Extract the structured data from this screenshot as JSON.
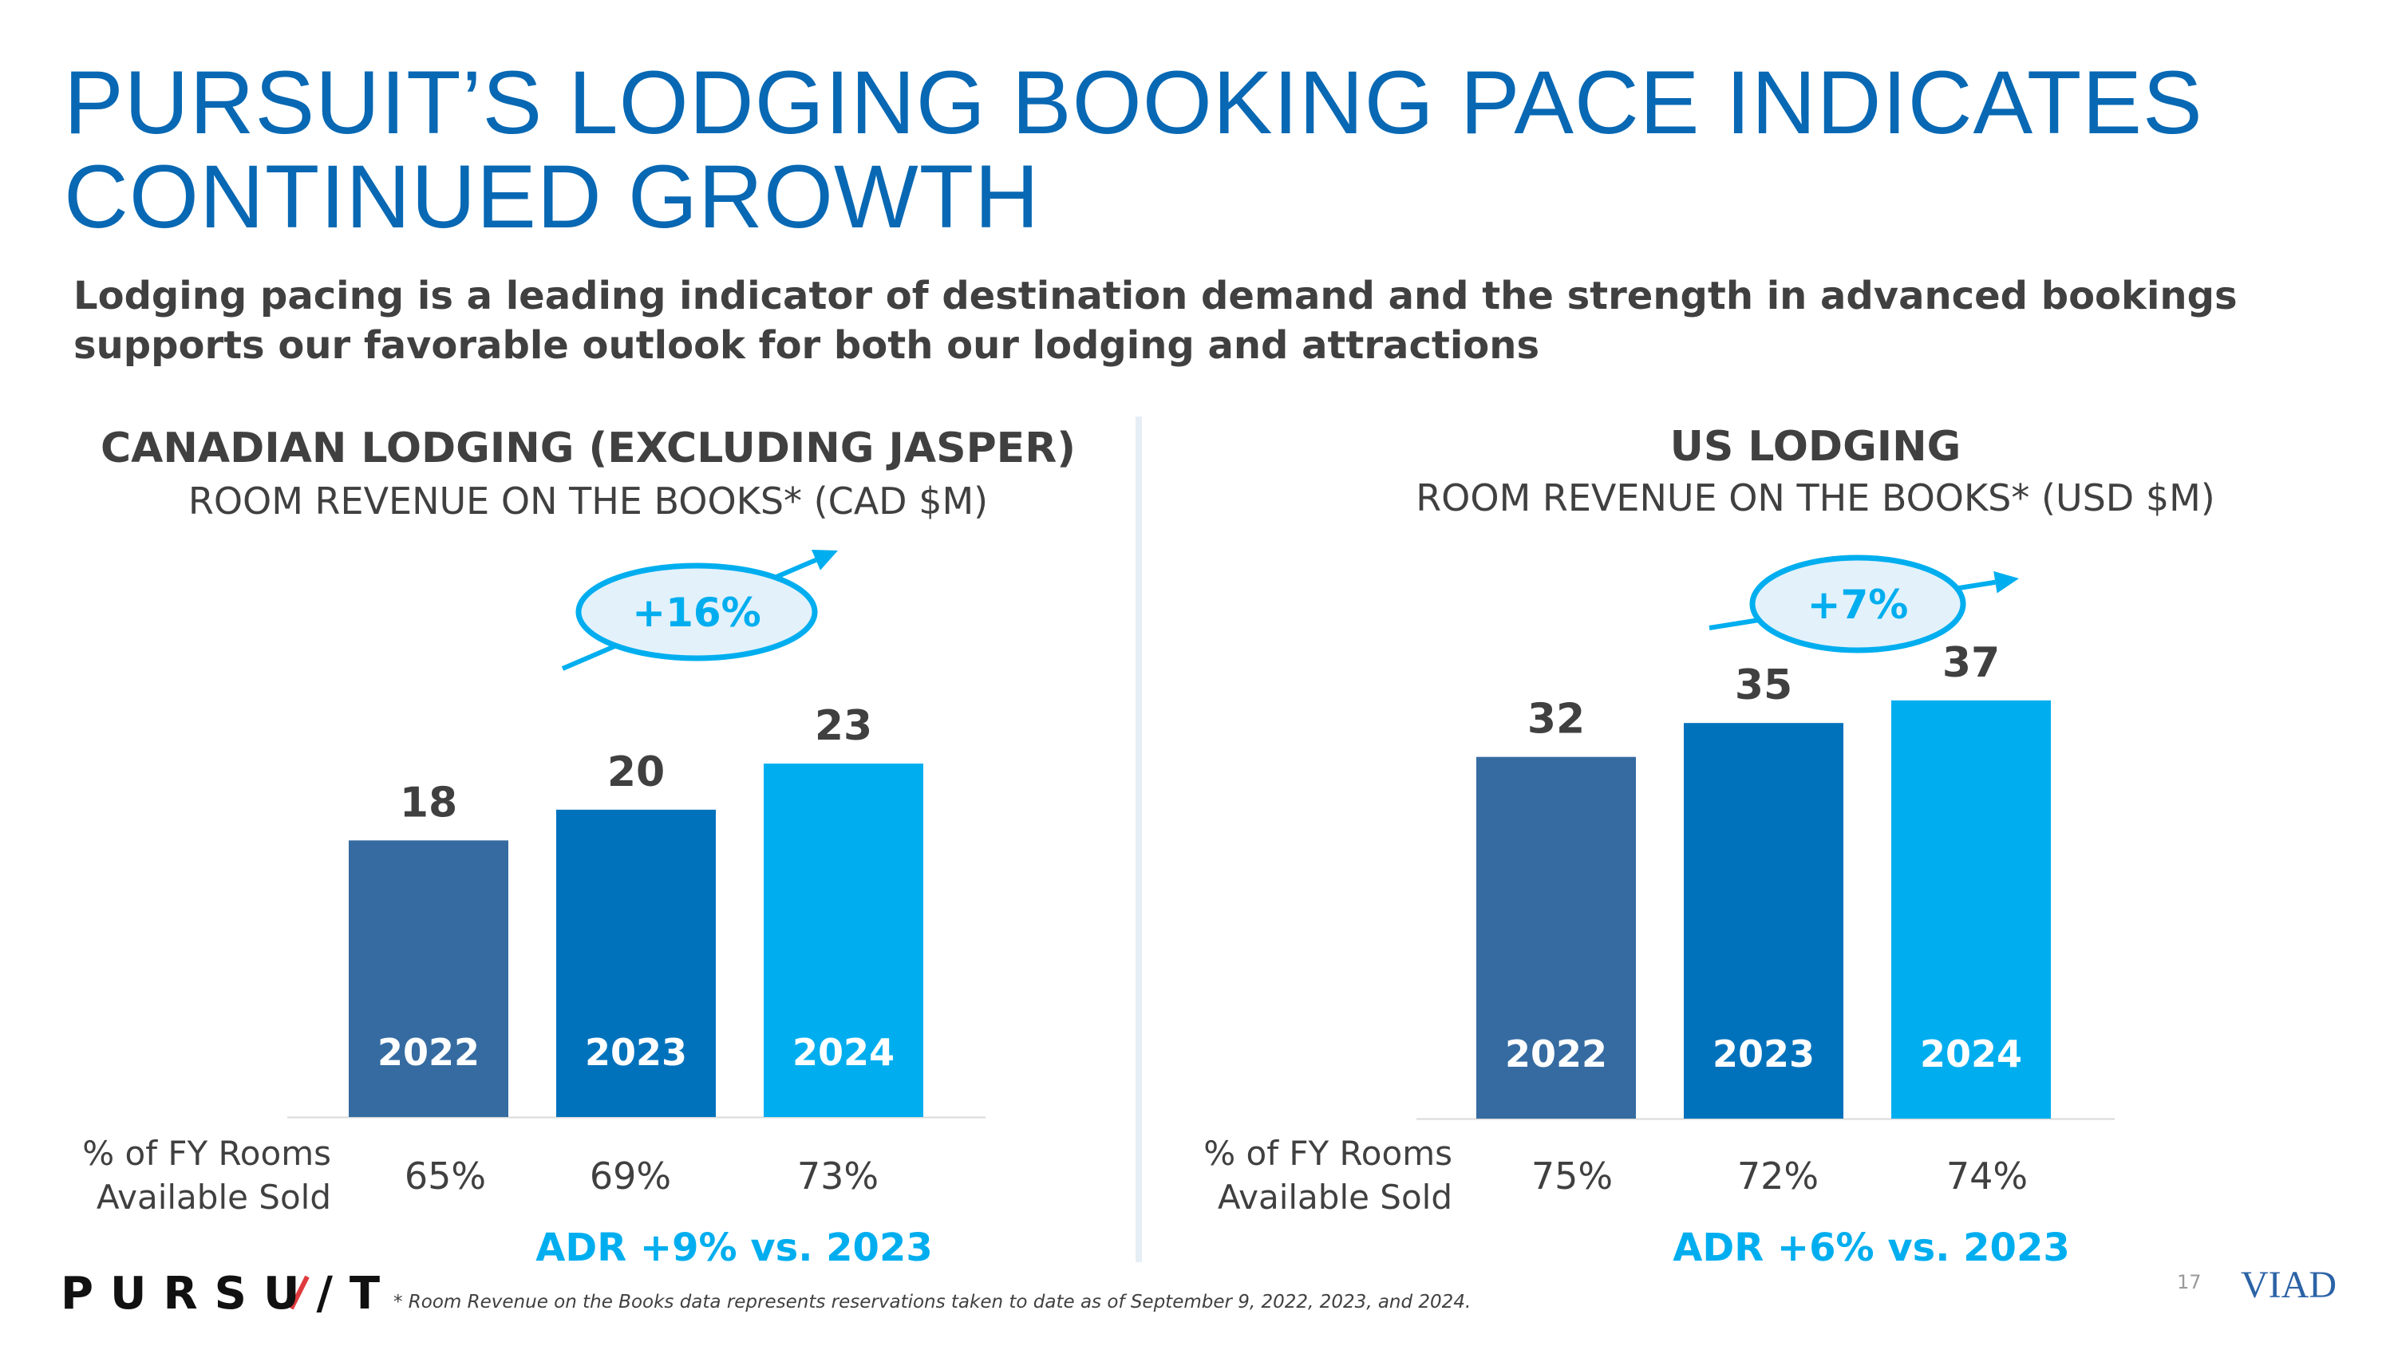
{
  "title": "PURSUIT’S LODGING BOOKING PACE INDICATES CONTINUED GROWTH",
  "subtitle": "Lodging pacing is a leading indicator of destination demand and the strength in advanced bookings supports our favorable outlook for both our lodging and attractions",
  "row_label": [
    "% of FY Rooms",
    "Available Sold"
  ],
  "footnote": "* Room Revenue on the Books data represents reservations taken to date as of September 9, 2022, 2023, and 2024.",
  "page_number": "17",
  "logos": {
    "pursuit": "PURSU/T",
    "viad": "VIAD"
  },
  "colors": {
    "bar_2022": "#356ba1",
    "bar_2023": "#0072bc",
    "bar_2024": "#00aeef",
    "accent": "#00aeef",
    "text": "#404040",
    "title": "#0868b3"
  },
  "chart_data": [
    {
      "type": "bar",
      "title": "CANADIAN LODGING (EXCLUDING JASPER)",
      "subtitle": "ROOM REVENUE ON THE BOOKS* (CAD $M)",
      "categories": [
        "2022",
        "2023",
        "2024"
      ],
      "values": [
        18,
        20,
        23
      ],
      "value_labels": [
        "18",
        "20",
        "23"
      ],
      "ylim": [
        0,
        27
      ],
      "growth_label": "+16%",
      "rooms_sold": [
        "65%",
        "69%",
        "73%"
      ],
      "adr_label": "ADR +9% vs. 2023"
    },
    {
      "type": "bar",
      "title": "US LODGING",
      "subtitle": "ROOM REVENUE ON THE BOOKS* (USD $M)",
      "categories": [
        "2022",
        "2023",
        "2024"
      ],
      "values": [
        32,
        35,
        37
      ],
      "value_labels": [
        "32",
        "35",
        "37"
      ],
      "ylim": [
        0,
        42
      ],
      "growth_label": "+7%",
      "rooms_sold": [
        "75%",
        "72%",
        "74%"
      ],
      "adr_label": "ADR +6% vs. 2023"
    }
  ]
}
